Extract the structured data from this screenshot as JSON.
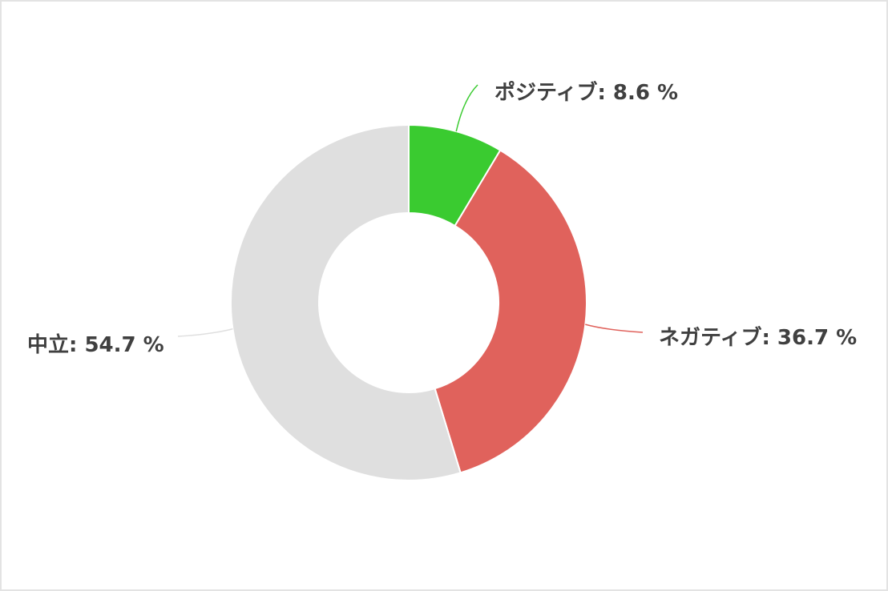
{
  "chart_data": {
    "type": "pie",
    "donut": true,
    "title": "",
    "start_angle": "top",
    "direction": "clockwise",
    "slices": [
      {
        "label": "ポジティブ",
        "value": 8.6,
        "display": "ポジティブ: 8.6 %",
        "color": "#3acb30"
      },
      {
        "label": "ネガティブ",
        "value": 36.7,
        "display": "ネガティブ: 36.7 %",
        "color": "#e0625c"
      },
      {
        "label": "中立",
        "value": 54.7,
        "display": "中立: 54.7 %",
        "color": "#dfdfdf"
      }
    ]
  }
}
